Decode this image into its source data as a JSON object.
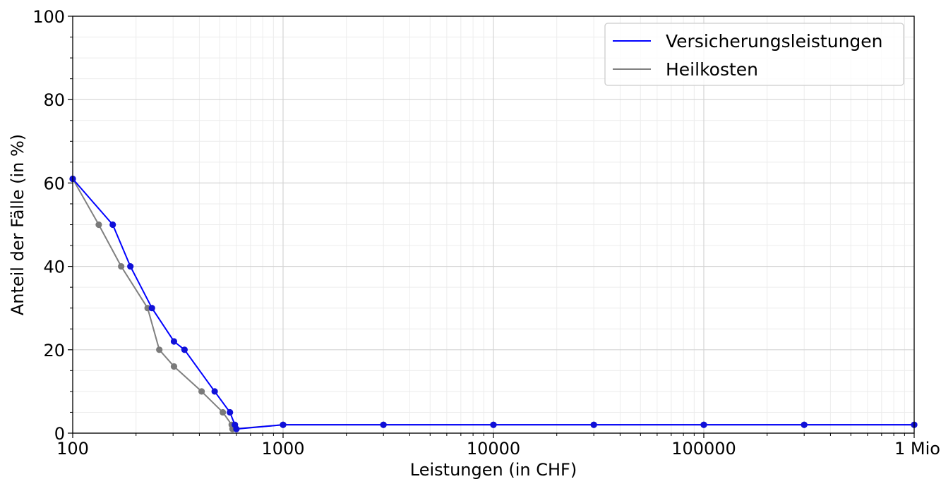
{
  "chart_data": {
    "type": "line",
    "title": "",
    "xlabel": "Leistungen (in CHF)",
    "ylabel": "Anteil der Fälle (in %)",
    "x_scale": "log",
    "xlim": [
      100,
      1000000
    ],
    "ylim": [
      0,
      100
    ],
    "x_ticks": [
      100,
      1000,
      10000,
      100000,
      1000000
    ],
    "x_tick_labels": [
      "100",
      "1000",
      "10000",
      "100000",
      "1 Mio"
    ],
    "y_ticks": [
      0,
      20,
      40,
      60,
      80,
      100
    ],
    "y_tick_labels": [
      "0",
      "20",
      "40",
      "60",
      "80",
      "100"
    ],
    "grid": true,
    "legend_position": "top-right",
    "series": [
      {
        "name": "Versicherungsleistungen",
        "color": "#0000ff",
        "marker_color": "#1010d8",
        "points": [
          [
            100,
            61
          ],
          [
            155,
            50
          ],
          [
            188,
            40
          ],
          [
            238,
            30
          ],
          [
            303,
            22
          ],
          [
            340,
            20
          ],
          [
            473,
            10
          ],
          [
            559,
            5
          ],
          [
            590,
            2
          ],
          [
            600,
            1
          ],
          [
            1000,
            2
          ],
          [
            3000,
            2
          ],
          [
            10000,
            2
          ],
          [
            30000,
            2
          ],
          [
            100000,
            2
          ],
          [
            300000,
            2
          ],
          [
            1000000,
            2
          ]
        ]
      },
      {
        "name": "Heilkosten",
        "color": "#808080",
        "marker_color": "#7a7a7a",
        "points": [
          [
            100,
            61
          ],
          [
            133,
            50
          ],
          [
            170,
            40
          ],
          [
            227,
            30
          ],
          [
            258,
            20
          ],
          [
            303,
            16
          ],
          [
            410,
            10
          ],
          [
            517,
            5
          ],
          [
            570,
            2
          ],
          [
            575,
            1
          ],
          [
            1000,
            2
          ],
          [
            3000,
            2
          ],
          [
            10000,
            2
          ],
          [
            30000,
            2
          ],
          [
            100000,
            2
          ],
          [
            300000,
            2
          ],
          [
            1000000,
            2
          ]
        ]
      }
    ]
  }
}
